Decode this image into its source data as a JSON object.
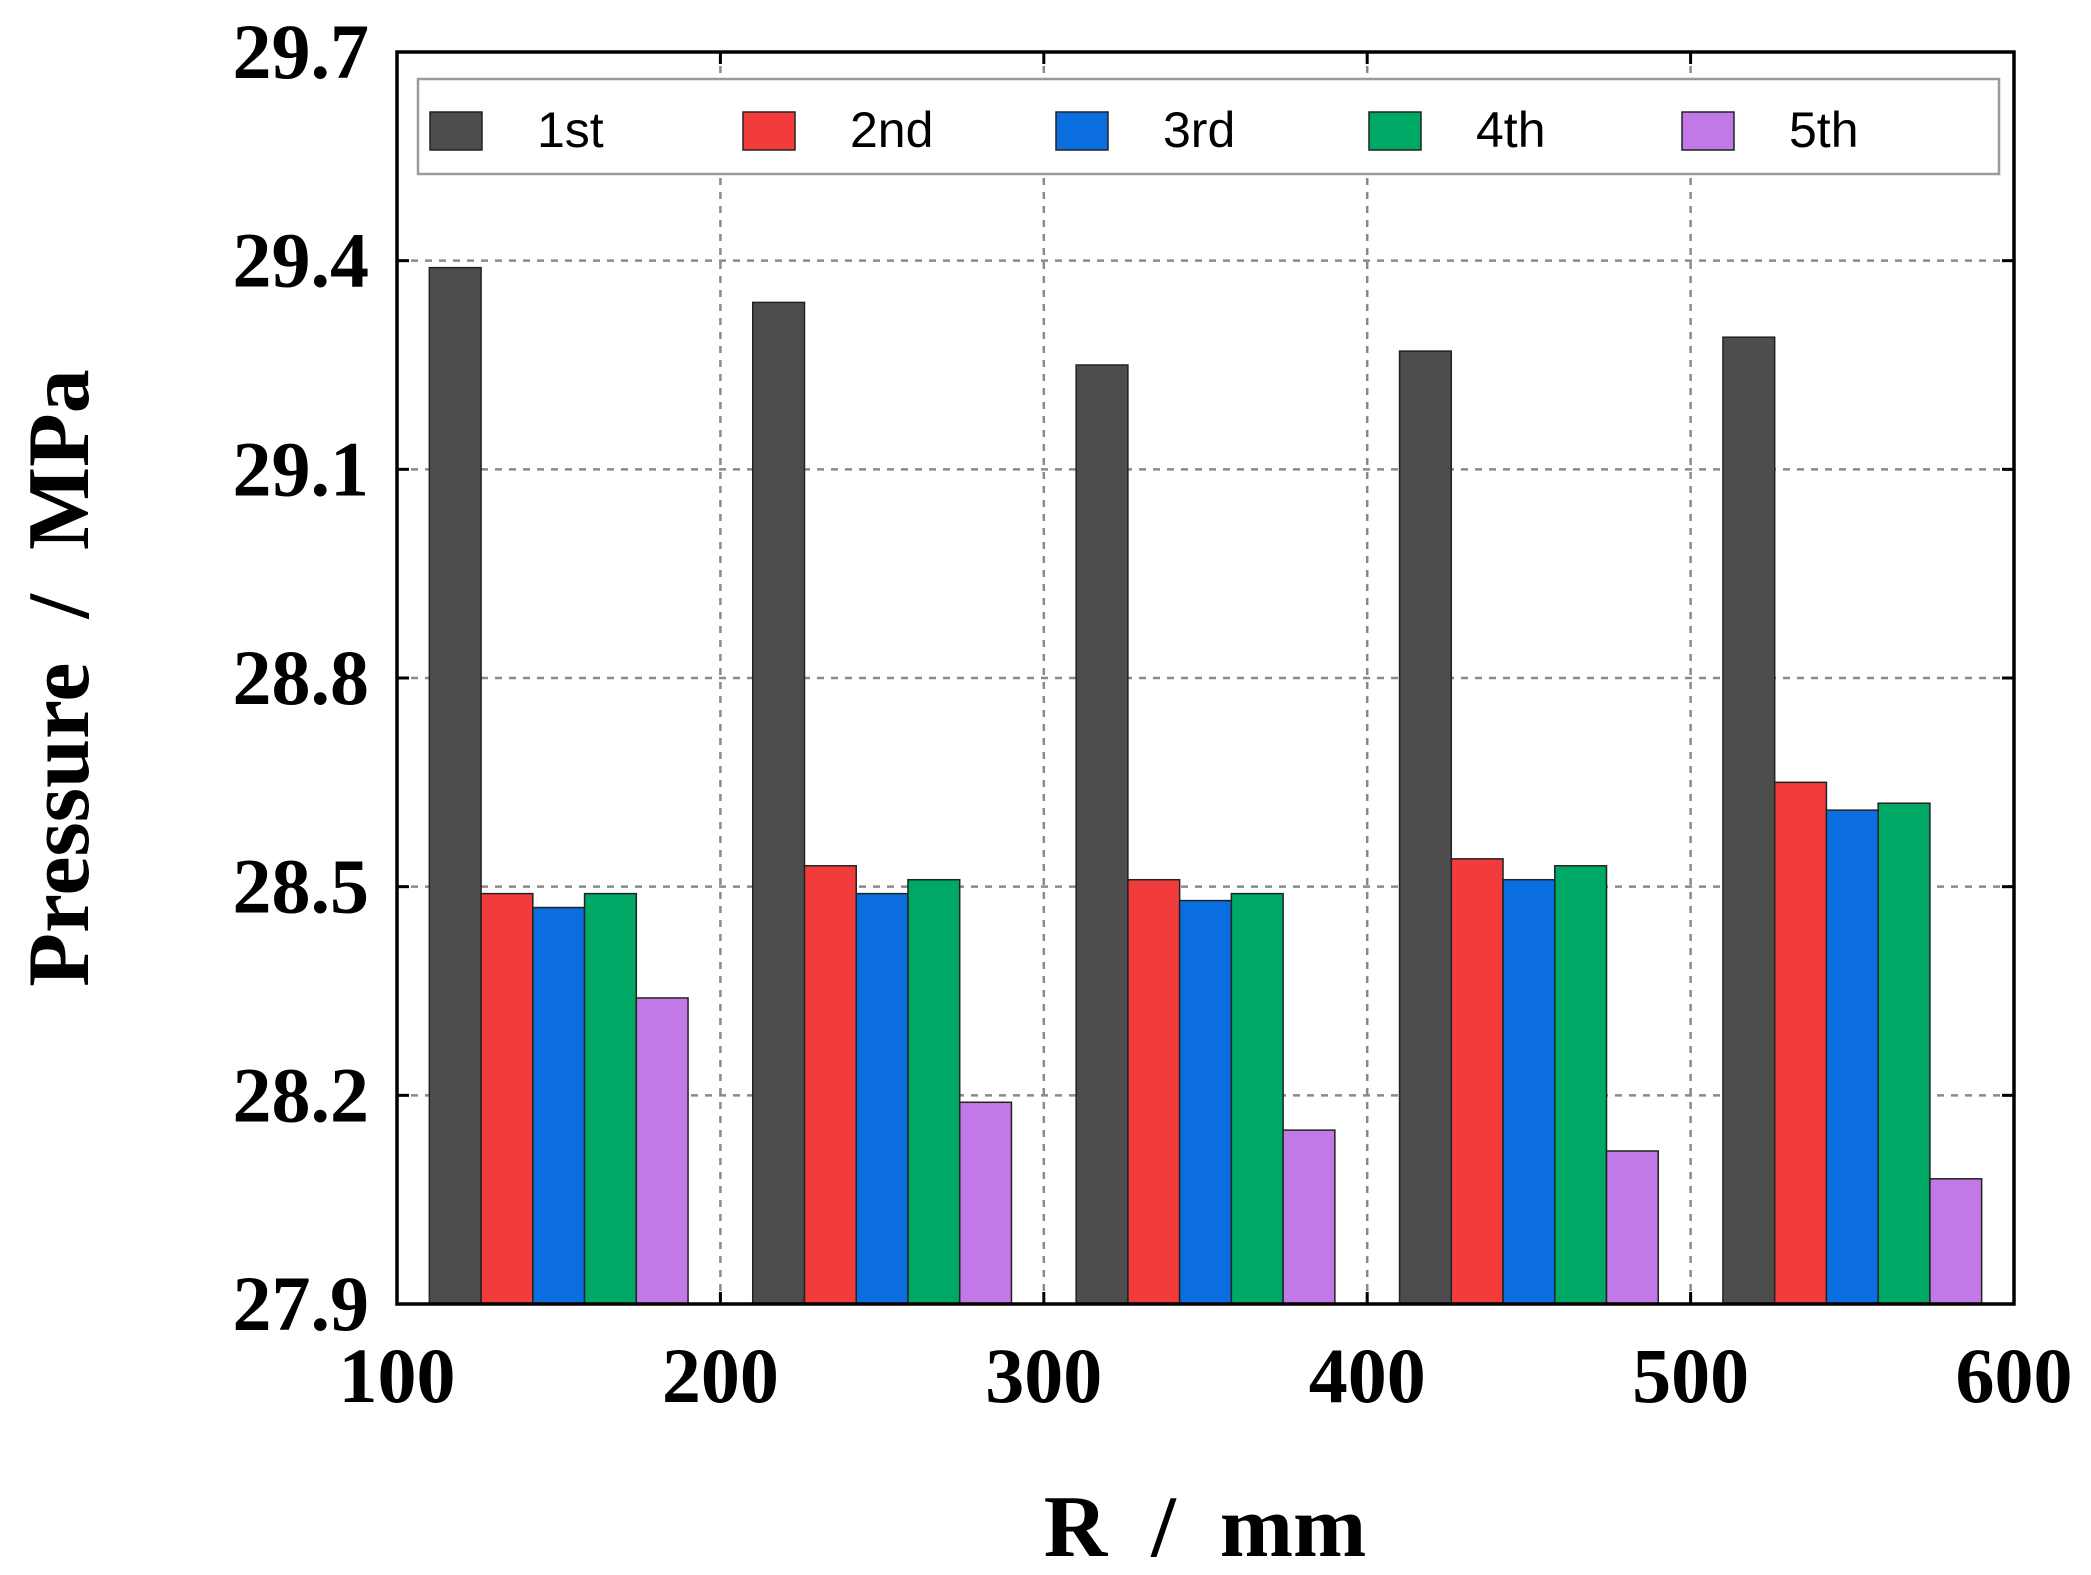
{
  "chart_data": {
    "type": "bar",
    "title": "",
    "xlabel": "R  /  mm",
    "ylabel": "Pressure  /  MPa",
    "xlim": [
      100,
      600
    ],
    "ylim": [
      27.9,
      29.7
    ],
    "x_ticks": [
      "100",
      "200",
      "300",
      "400",
      "500",
      "600"
    ],
    "y_ticks": [
      "27.9",
      "28.2",
      "28.5",
      "28.8",
      "29.1",
      "29.4",
      "29.7"
    ],
    "grid": true,
    "legend_position": "top",
    "groups": [
      100,
      200,
      300,
      400,
      500
    ],
    "series": [
      {
        "name": "1st",
        "color": "#4d4d4d",
        "values": [
          29.39,
          29.34,
          29.25,
          29.27,
          29.29
        ]
      },
      {
        "name": "2nd",
        "color": "#f23b3b",
        "values": [
          28.49,
          28.53,
          28.51,
          28.54,
          28.65
        ]
      },
      {
        "name": "3rd",
        "color": "#0a6ee0",
        "values": [
          28.47,
          28.49,
          28.48,
          28.51,
          28.61
        ]
      },
      {
        "name": "4th",
        "color": "#00a865",
        "values": [
          28.49,
          28.51,
          28.49,
          28.53,
          28.62
        ]
      },
      {
        "name": "5th",
        "color": "#c079e6",
        "values": [
          28.34,
          28.19,
          28.15,
          28.12,
          28.08
        ]
      }
    ]
  }
}
